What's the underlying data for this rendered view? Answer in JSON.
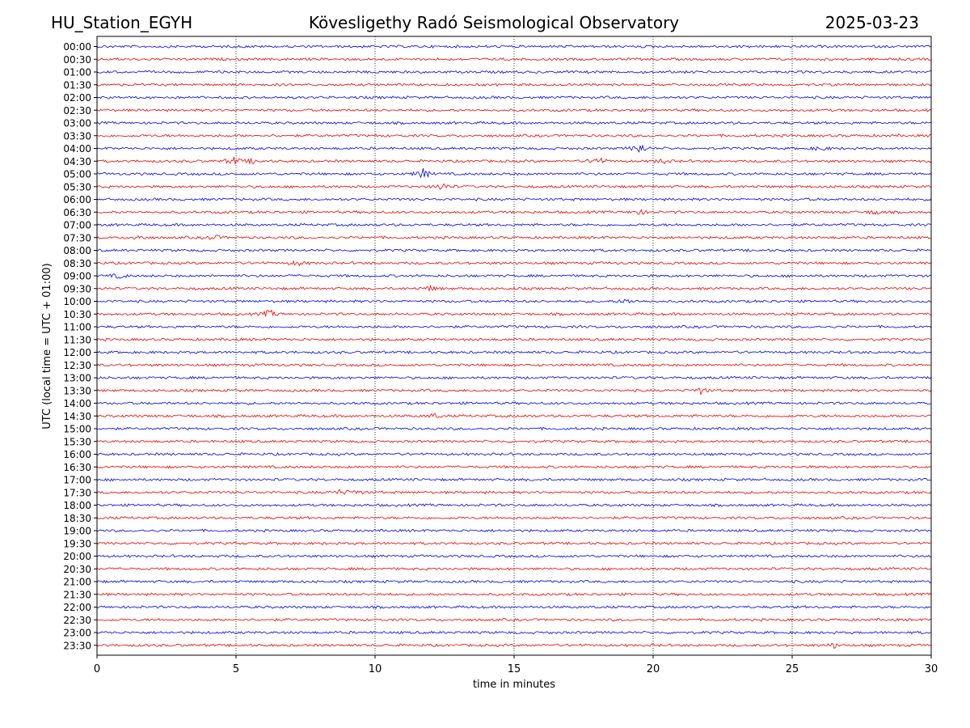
{
  "header": {
    "station": "HU_Station_EGYH",
    "observatory": "Kövesligethy Radó Seismological Observatory",
    "date": "2025-03-23"
  },
  "chart_data": {
    "type": "line",
    "title": "Kövesligethy Radó Seismological Observatory",
    "xlabel": "time in minutes",
    "ylabel": "UTC (local time = UTC + 01:00)",
    "xlim": [
      0,
      30
    ],
    "x_ticks": [
      0,
      5,
      10,
      15,
      20,
      25,
      30
    ],
    "grid": "vertical dotted",
    "colors": {
      "even_rows": "#0000ee",
      "odd_rows": "#ee0000"
    },
    "rows": [
      "00:00",
      "00:30",
      "01:00",
      "01:30",
      "02:00",
      "02:30",
      "03:00",
      "03:30",
      "04:00",
      "04:30",
      "05:00",
      "05:30",
      "06:00",
      "06:30",
      "07:00",
      "07:30",
      "08:00",
      "08:30",
      "09:00",
      "09:30",
      "10:00",
      "10:30",
      "11:00",
      "11:30",
      "12:00",
      "12:30",
      "13:00",
      "13:30",
      "14:00",
      "14:30",
      "15:00",
      "15:30",
      "16:00",
      "16:30",
      "17:00",
      "17:30",
      "18:00",
      "18:30",
      "19:00",
      "19:30",
      "20:00",
      "20:30",
      "21:00",
      "21:30",
      "22:00",
      "22:30",
      "23:00",
      "23:30"
    ],
    "events": [
      {
        "row": "04:00",
        "minute": 19.5,
        "amplitude": 7
      },
      {
        "row": "04:00",
        "minute": 26.0,
        "amplitude": 3
      },
      {
        "row": "04:30",
        "minute": 4.9,
        "amplitude": 5
      },
      {
        "row": "04:30",
        "minute": 5.6,
        "amplitude": 3
      },
      {
        "row": "04:30",
        "minute": 18.0,
        "amplitude": 6
      },
      {
        "row": "04:30",
        "minute": 20.3,
        "amplitude": 3
      },
      {
        "row": "05:00",
        "minute": 11.7,
        "amplitude": 7
      },
      {
        "row": "05:30",
        "minute": 12.4,
        "amplitude": 5
      },
      {
        "row": "06:30",
        "minute": 19.5,
        "amplitude": 3
      },
      {
        "row": "06:30",
        "minute": 28.0,
        "amplitude": 3
      },
      {
        "row": "07:30",
        "minute": 1.5,
        "amplitude": 3
      },
      {
        "row": "07:30",
        "minute": 4.2,
        "amplitude": 3
      },
      {
        "row": "08:30",
        "minute": 7.2,
        "amplitude": 3
      },
      {
        "row": "09:00",
        "minute": 0.8,
        "amplitude": 3
      },
      {
        "row": "09:30",
        "minute": 12.0,
        "amplitude": 3
      },
      {
        "row": "10:00",
        "minute": 19.0,
        "amplitude": 3
      },
      {
        "row": "10:30",
        "minute": 6.2,
        "amplitude": 5
      },
      {
        "row": "13:30",
        "minute": 21.7,
        "amplitude": 4
      },
      {
        "row": "14:30",
        "minute": 12.1,
        "amplitude": 3
      },
      {
        "row": "17:30",
        "minute": 8.7,
        "amplitude": 3
      },
      {
        "row": "17:30",
        "minute": 9.3,
        "amplitude": 3
      },
      {
        "row": "23:30",
        "minute": 26.5,
        "amplitude": 3
      }
    ]
  }
}
